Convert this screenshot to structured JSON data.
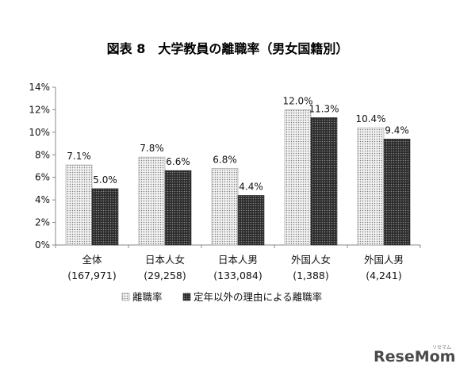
{
  "chart_data": {
    "type": "bar",
    "title": "図表 8　大学教員の離職率（男女国籍別）",
    "categories": [
      "全体",
      "日本人女",
      "日本人男",
      "外国人女",
      "外国人男"
    ],
    "category_counts": [
      "(167,971)",
      "(29,258)",
      "(133,084)",
      "(1,388)",
      "(4,241)"
    ],
    "series": [
      {
        "name": "離職率",
        "values": [
          7.1,
          7.8,
          6.8,
          12.0,
          10.4
        ],
        "labels": [
          "7.1%",
          "7.8%",
          "6.8%",
          "12.0%",
          "10.4%"
        ],
        "pattern": "light-dots",
        "color": "#c8c8c8"
      },
      {
        "name": "定年以外の理由による離職率",
        "values": [
          5.0,
          6.6,
          4.4,
          11.3,
          9.4
        ],
        "labels": [
          "5.0%",
          "6.6%",
          "4.4%",
          "11.3%",
          "9.4%"
        ],
        "pattern": "dark-dots",
        "color": "#333333"
      }
    ],
    "y_ticks": [
      "0%",
      "2%",
      "4%",
      "6%",
      "8%",
      "10%",
      "12%",
      "14%"
    ],
    "ylim": [
      0,
      14
    ],
    "grid": false,
    "legend_position": "bottom-center"
  },
  "watermark": {
    "text": "ReseMom",
    "small_text": "リセマム"
  }
}
